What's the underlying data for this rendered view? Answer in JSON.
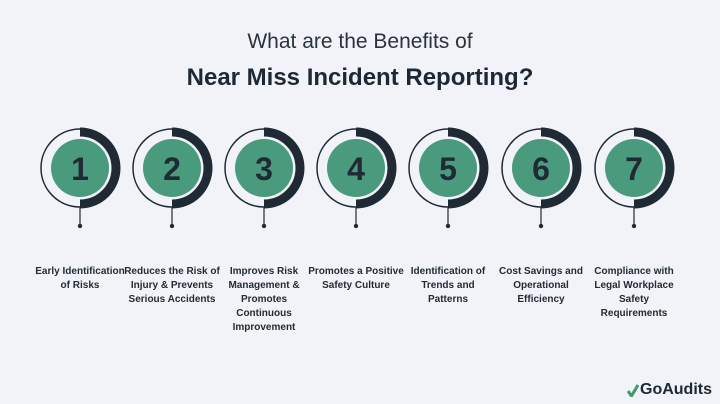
{
  "header": {
    "line1": "What are the Benefits of",
    "line2": "Near Miss Incident Reporting?"
  },
  "colors": {
    "background": "#f1f3f8",
    "green": "#4a9a7e",
    "dark": "#1f2a35"
  },
  "steps": [
    {
      "number": "1",
      "label": "Early Identification of Risks"
    },
    {
      "number": "2",
      "label": "Reduces the Risk of Injury & Prevents Serious Accidents"
    },
    {
      "number": "3",
      "label": "Improves Risk Management & Promotes Continuous Improvement"
    },
    {
      "number": "4",
      "label": "Promotes a Positive Safety Culture"
    },
    {
      "number": "5",
      "label": "Identification of Trends and Patterns"
    },
    {
      "number": "6",
      "label": "Cost Savings and Operational Efficiency"
    },
    {
      "number": "7",
      "label": "Compliance with Legal Workplace Safety Requirements"
    }
  ],
  "logo": {
    "text": "GoAudits",
    "icon": "check-icon"
  }
}
